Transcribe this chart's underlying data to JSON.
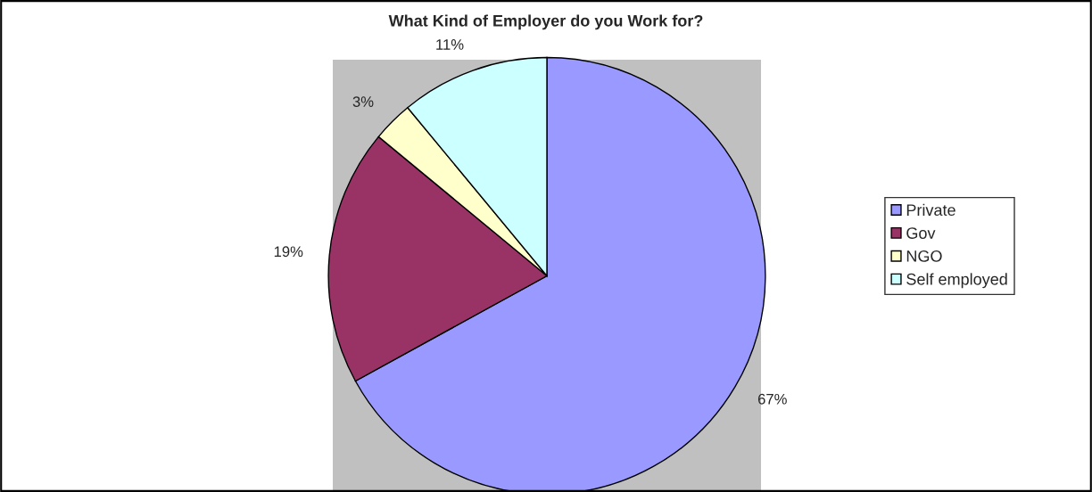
{
  "chart_data": {
    "type": "pie",
    "title": "What Kind of Employer do you Work for?",
    "categories": [
      "Private",
      "Gov",
      "NGO",
      "Self employed"
    ],
    "values": [
      67,
      19,
      3,
      11
    ],
    "value_labels": [
      "67%",
      "19%",
      "3%",
      "11%"
    ],
    "colors": [
      "#9999ff",
      "#993366",
      "#ffffcc",
      "#ccffff"
    ],
    "legend": "right"
  }
}
